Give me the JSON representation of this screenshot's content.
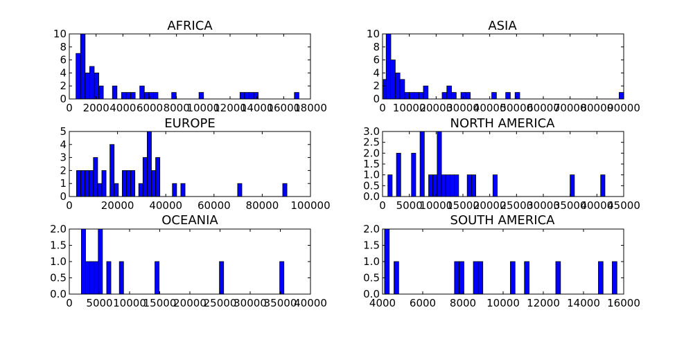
{
  "chart_data": [
    {
      "type": "histogram",
      "title": "AFRICA",
      "xlim": [
        0,
        18000
      ],
      "ylim": [
        0,
        10
      ],
      "xticks": [
        0,
        2000,
        4000,
        6000,
        8000,
        10000,
        12000,
        14000,
        16000,
        18000
      ],
      "yticks": [
        0,
        2,
        4,
        6,
        8,
        10
      ],
      "xtick_labels": [
        "0",
        "2000",
        "4000",
        "6000",
        "8000",
        "10000",
        "12000",
        "14000",
        "16000",
        "18000"
      ],
      "ytick_labels": [
        "0",
        "2",
        "4",
        "6",
        "8",
        "10"
      ],
      "bin_width": 340,
      "bins": [
        {
          "x": 500,
          "count": 7
        },
        {
          "x": 840,
          "count": 10
        },
        {
          "x": 1180,
          "count": 4
        },
        {
          "x": 1520,
          "count": 5
        },
        {
          "x": 1860,
          "count": 4
        },
        {
          "x": 2200,
          "count": 2
        },
        {
          "x": 3220,
          "count": 2
        },
        {
          "x": 3900,
          "count": 1
        },
        {
          "x": 4240,
          "count": 1
        },
        {
          "x": 4580,
          "count": 1
        },
        {
          "x": 5260,
          "count": 2
        },
        {
          "x": 5600,
          "count": 1
        },
        {
          "x": 5940,
          "count": 1
        },
        {
          "x": 6280,
          "count": 1
        },
        {
          "x": 7640,
          "count": 1
        },
        {
          "x": 9680,
          "count": 1
        },
        {
          "x": 12740,
          "count": 1
        },
        {
          "x": 13080,
          "count": 1
        },
        {
          "x": 13420,
          "count": 1
        },
        {
          "x": 13760,
          "count": 1
        },
        {
          "x": 16800,
          "count": 1
        }
      ]
    },
    {
      "type": "histogram",
      "title": "ASIA",
      "xlim": [
        0,
        90000
      ],
      "ylim": [
        0,
        10
      ],
      "xticks": [
        0,
        10000,
        20000,
        30000,
        40000,
        50000,
        60000,
        70000,
        80000,
        90000
      ],
      "yticks": [
        0,
        2,
        4,
        6,
        8,
        10
      ],
      "xtick_labels": [
        "0",
        "10000",
        "20000",
        "30000",
        "40000",
        "50000",
        "60000",
        "70000",
        "80000",
        "90000"
      ],
      "ytick_labels": [
        "0",
        "2",
        "4",
        "6",
        "8",
        "10"
      ],
      "bin_width": 1750,
      "bins": [
        {
          "x": 300,
          "count": 3
        },
        {
          "x": 1350,
          "count": 10
        },
        {
          "x": 3000,
          "count": 6
        },
        {
          "x": 4750,
          "count": 4
        },
        {
          "x": 6500,
          "count": 3
        },
        {
          "x": 8250,
          "count": 1
        },
        {
          "x": 10000,
          "count": 1
        },
        {
          "x": 11750,
          "count": 1
        },
        {
          "x": 13500,
          "count": 1
        },
        {
          "x": 15250,
          "count": 2
        },
        {
          "x": 22250,
          "count": 1
        },
        {
          "x": 24000,
          "count": 2
        },
        {
          "x": 25750,
          "count": 1
        },
        {
          "x": 29250,
          "count": 1
        },
        {
          "x": 31000,
          "count": 1
        },
        {
          "x": 40750,
          "count": 1
        },
        {
          "x": 45950,
          "count": 1
        },
        {
          "x": 49450,
          "count": 1
        },
        {
          "x": 88300,
          "count": 1
        }
      ]
    },
    {
      "type": "histogram",
      "title": "EUROPE",
      "xlim": [
        0,
        100000
      ],
      "ylim": [
        0,
        5
      ],
      "xticks": [
        0,
        20000,
        40000,
        60000,
        80000,
        100000
      ],
      "yticks": [
        0,
        1,
        2,
        3,
        4,
        5
      ],
      "xtick_labels": [
        "0",
        "20000",
        "40000",
        "60000",
        "80000",
        "100000"
      ],
      "ytick_labels": [
        "0",
        "1",
        "2",
        "3",
        "4",
        "5"
      ],
      "bin_width": 1750,
      "bins": [
        {
          "x": 3000,
          "count": 2
        },
        {
          "x": 4750,
          "count": 2
        },
        {
          "x": 6500,
          "count": 2
        },
        {
          "x": 8250,
          "count": 2
        },
        {
          "x": 10000,
          "count": 3
        },
        {
          "x": 11750,
          "count": 1
        },
        {
          "x": 13500,
          "count": 2
        },
        {
          "x": 16850,
          "count": 4
        },
        {
          "x": 18600,
          "count": 1
        },
        {
          "x": 21950,
          "count": 2
        },
        {
          "x": 23700,
          "count": 2
        },
        {
          "x": 25450,
          "count": 2
        },
        {
          "x": 28800,
          "count": 1
        },
        {
          "x": 30550,
          "count": 3
        },
        {
          "x": 32300,
          "count": 5
        },
        {
          "x": 34050,
          "count": 2
        },
        {
          "x": 35800,
          "count": 3
        },
        {
          "x": 42750,
          "count": 1
        },
        {
          "x": 46250,
          "count": 1
        },
        {
          "x": 69800,
          "count": 1
        },
        {
          "x": 88500,
          "count": 1
        }
      ]
    },
    {
      "type": "histogram",
      "title": "NORTH AMERICA",
      "xlim": [
        0,
        45000
      ],
      "ylim": [
        0,
        3
      ],
      "xticks": [
        0,
        5000,
        10000,
        15000,
        20000,
        25000,
        30000,
        35000,
        40000,
        45000
      ],
      "yticks": [
        0,
        0.5,
        1.0,
        1.5,
        2.0,
        2.5,
        3.0
      ],
      "xtick_labels": [
        "0",
        "5000",
        "10000",
        "15000",
        "20000",
        "25000",
        "30000",
        "35000",
        "40000",
        "45000"
      ],
      "ytick_labels": [
        "0.0",
        "0.5",
        "1.0",
        "1.5",
        "2.0",
        "2.5",
        "3.0"
      ],
      "bin_width": 800,
      "bins": [
        {
          "x": 1000,
          "count": 1
        },
        {
          "x": 2600,
          "count": 2
        },
        {
          "x": 5400,
          "count": 2
        },
        {
          "x": 7000,
          "count": 3
        },
        {
          "x": 8600,
          "count": 1
        },
        {
          "x": 9400,
          "count": 1
        },
        {
          "x": 10200,
          "count": 3
        },
        {
          "x": 11000,
          "count": 1
        },
        {
          "x": 11800,
          "count": 1
        },
        {
          "x": 12600,
          "count": 1
        },
        {
          "x": 13400,
          "count": 1
        },
        {
          "x": 15800,
          "count": 1
        },
        {
          "x": 16600,
          "count": 1
        },
        {
          "x": 20600,
          "count": 1
        },
        {
          "x": 35000,
          "count": 1
        },
        {
          "x": 40700,
          "count": 1
        }
      ]
    },
    {
      "type": "histogram",
      "title": "OCEANIA",
      "xlim": [
        0,
        40000
      ],
      "ylim": [
        0,
        2
      ],
      "xticks": [
        0,
        5000,
        10000,
        15000,
        20000,
        25000,
        30000,
        35000,
        40000
      ],
      "yticks": [
        0,
        0.5,
        1.0,
        1.5,
        2.0
      ],
      "xtick_labels": [
        "0",
        "5000",
        "10000",
        "15000",
        "20000",
        "25000",
        "30000",
        "35000",
        "40000"
      ],
      "ytick_labels": [
        "0.0",
        "0.5",
        "1.0",
        "1.5",
        "2.0"
      ],
      "bin_width": 700,
      "bins": [
        {
          "x": 2000,
          "count": 2
        },
        {
          "x": 2700,
          "count": 1
        },
        {
          "x": 3400,
          "count": 1
        },
        {
          "x": 4100,
          "count": 1
        },
        {
          "x": 4800,
          "count": 2
        },
        {
          "x": 6200,
          "count": 1
        },
        {
          "x": 8300,
          "count": 1
        },
        {
          "x": 14200,
          "count": 1
        },
        {
          "x": 24900,
          "count": 1
        },
        {
          "x": 34900,
          "count": 1
        }
      ]
    },
    {
      "type": "histogram",
      "title": "SOUTH AMERICA",
      "xlim": [
        4000,
        16000
      ],
      "ylim": [
        0,
        2
      ],
      "xticks": [
        4000,
        6000,
        8000,
        10000,
        12000,
        14000,
        16000
      ],
      "yticks": [
        0,
        0.5,
        1.0,
        1.5,
        2.0
      ],
      "xtick_labels": [
        "4000",
        "6000",
        "8000",
        "10000",
        "12000",
        "14000",
        "16000"
      ],
      "ytick_labels": [
        "0.0",
        "0.5",
        "1.0",
        "1.5",
        "2.0"
      ],
      "bin_width": 235,
      "bins": [
        {
          "x": 4100,
          "count": 2
        },
        {
          "x": 4570,
          "count": 1
        },
        {
          "x": 7580,
          "count": 1
        },
        {
          "x": 7815,
          "count": 1
        },
        {
          "x": 8520,
          "count": 1
        },
        {
          "x": 8755,
          "count": 1
        },
        {
          "x": 10360,
          "count": 1
        },
        {
          "x": 11060,
          "count": 1
        },
        {
          "x": 12620,
          "count": 1
        },
        {
          "x": 14740,
          "count": 1
        },
        {
          "x": 15430,
          "count": 1
        }
      ]
    }
  ]
}
